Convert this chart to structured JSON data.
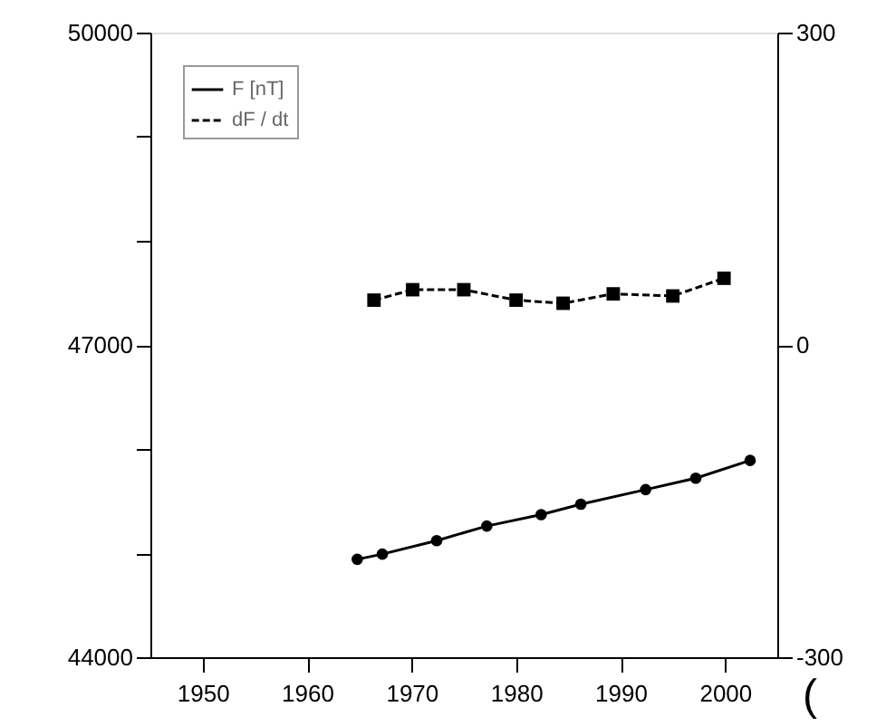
{
  "chart_data": {
    "type": "line",
    "xlim": [
      1945,
      2005
    ],
    "xticks": [
      1950,
      1960,
      1970,
      1980,
      1990,
      2000
    ],
    "ylim": [
      44000,
      50000
    ],
    "yticks": [
      44000,
      {
        "value": 45000,
        "label": null
      },
      {
        "value": 46000,
        "label": null
      },
      47000,
      {
        "value": 48000,
        "label": null
      },
      {
        "value": 49000,
        "label": null
      },
      50000
    ],
    "y2lim": [
      -300,
      300
    ],
    "y2ticks": [
      -300,
      0,
      300
    ],
    "grid": false,
    "legend": "top left",
    "series": [
      {
        "name": "F [nT]",
        "color": "#000000",
        "line_style": "solid",
        "marker": "circle",
        "x": [
          1964.8,
          1967.2,
          1972.4,
          1977.2,
          1982.4,
          1986.2,
          1992.4,
          1997.2,
          2002.4
        ],
        "values": [
          44940,
          44990,
          45120,
          45260,
          45370,
          45470,
          45610,
          45720,
          45890
        ]
      },
      {
        "name": "dF / dt",
        "color": "#000000",
        "line_style": "dashed",
        "marker": "square",
        "axis": "y2",
        "x": [
          1966.4,
          1970.1,
          1975.0,
          1980.0,
          1984.5,
          1989.3,
          1995.0,
          1999.9
        ],
        "values": [
          43,
          53,
          53,
          43,
          40,
          49,
          47,
          64
        ]
      }
    ],
    "annotations": [
      "("
    ]
  }
}
